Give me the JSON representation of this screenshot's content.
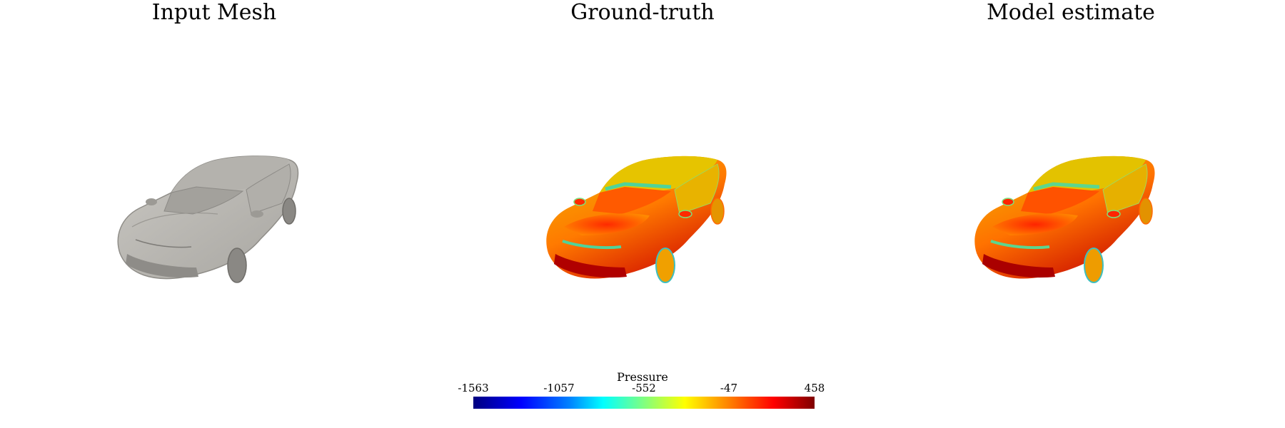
{
  "panels": [
    {
      "id": "mesh",
      "title": "Input Mesh",
      "mode": "gray"
    },
    {
      "id": "gt",
      "title": "Ground-truth",
      "mode": "pressure"
    },
    {
      "id": "model",
      "title": "Model estimate",
      "mode": "pressure"
    }
  ],
  "colorbar": {
    "title": "Pressure",
    "ticks": [
      "-1563",
      "-1057",
      "-552",
      "-47",
      "458"
    ],
    "colormap": [
      "#00007f",
      "#0000ff",
      "#0080ff",
      "#00ffff",
      "#80ff80",
      "#ffff00",
      "#ff8000",
      "#ff0000",
      "#7f0000"
    ]
  },
  "colors": {
    "mesh_body": "#bdbbb6",
    "mesh_shade": "#9c9a95",
    "mesh_dark": "#7e7c78"
  }
}
